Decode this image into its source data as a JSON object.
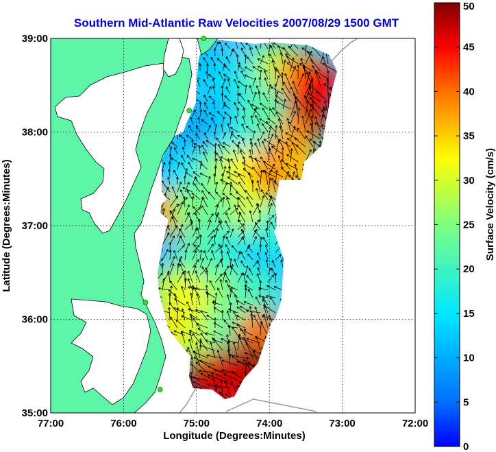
{
  "chart_data": {
    "type": "heatmap",
    "title": "Southern Mid-Atlantic Raw Velocities 2007/08/29 1500 GMT",
    "xlabel": "Longitude (Degrees:Minutes)",
    "ylabel": "Latitude (Degrees:Minutes)",
    "colorbar_label": "Surface Velocity (cm/s)",
    "xlim": [
      -77,
      -72
    ],
    "ylim": [
      35,
      39
    ],
    "x_ticks": [
      {
        "value": -77,
        "label": "77:00"
      },
      {
        "value": -76,
        "label": "76:00"
      },
      {
        "value": -75,
        "label": "75:00"
      },
      {
        "value": -74,
        "label": "74:00"
      },
      {
        "value": -73,
        "label": "73:00"
      },
      {
        "value": -72,
        "label": "72:00"
      }
    ],
    "y_ticks": [
      {
        "value": 35,
        "label": "35:00"
      },
      {
        "value": 36,
        "label": "36:00"
      },
      {
        "value": 37,
        "label": "37:00"
      },
      {
        "value": 38,
        "label": "38:00"
      },
      {
        "value": 39,
        "label": "39:00"
      }
    ],
    "colorbar_range": [
      0,
      50
    ],
    "colorbar_ticks": [
      {
        "value": 0,
        "label": "0"
      },
      {
        "value": 5,
        "label": "5"
      },
      {
        "value": 10,
        "label": "10"
      },
      {
        "value": 15,
        "label": "15"
      },
      {
        "value": 20,
        "label": "20"
      },
      {
        "value": 25,
        "label": "25"
      },
      {
        "value": 30,
        "label": "30"
      },
      {
        "value": 35,
        "label": "35"
      },
      {
        "value": 40,
        "label": "40"
      },
      {
        "value": 45,
        "label": "45"
      },
      {
        "value": 50,
        "label": "50"
      }
    ],
    "grid": true,
    "colors": {
      "land": "#5ef5a8",
      "water": "#ffffff",
      "title": "#0000cc",
      "arrows": "#000000",
      "stations": "#33dd33"
    },
    "stations": [
      {
        "lon": -74.9,
        "lat": 39.0
      },
      {
        "lon": -75.1,
        "lat": 38.23
      },
      {
        "lon": -75.7,
        "lat": 36.18
      },
      {
        "lon": -75.5,
        "lat": 35.25
      }
    ],
    "velocity_regions": [
      {
        "lon": -74.9,
        "lat": 38.7,
        "speed": 12
      },
      {
        "lon": -74.6,
        "lat": 38.5,
        "speed": 14
      },
      {
        "lon": -74.2,
        "lat": 38.6,
        "speed": 18
      },
      {
        "lon": -73.9,
        "lat": 38.7,
        "speed": 28
      },
      {
        "lon": -73.6,
        "lat": 38.6,
        "speed": 38
      },
      {
        "lon": -73.35,
        "lat": 38.5,
        "speed": 45
      },
      {
        "lon": -73.5,
        "lat": 38.15,
        "speed": 47
      },
      {
        "lon": -73.75,
        "lat": 37.95,
        "speed": 38
      },
      {
        "lon": -75.0,
        "lat": 38.05,
        "speed": 10
      },
      {
        "lon": -74.7,
        "lat": 38.1,
        "speed": 11
      },
      {
        "lon": -74.35,
        "lat": 38.0,
        "speed": 16
      },
      {
        "lon": -74.1,
        "lat": 38.2,
        "speed": 22
      },
      {
        "lon": -75.3,
        "lat": 37.6,
        "speed": 12
      },
      {
        "lon": -75.0,
        "lat": 37.55,
        "speed": 16
      },
      {
        "lon": -74.65,
        "lat": 37.6,
        "speed": 26
      },
      {
        "lon": -74.3,
        "lat": 37.6,
        "speed": 33
      },
      {
        "lon": -73.9,
        "lat": 37.55,
        "speed": 40
      },
      {
        "lon": -73.6,
        "lat": 37.6,
        "speed": 36
      },
      {
        "lon": -75.4,
        "lat": 37.15,
        "speed": 38
      },
      {
        "lon": -75.05,
        "lat": 37.2,
        "speed": 25
      },
      {
        "lon": -74.6,
        "lat": 37.15,
        "speed": 23
      },
      {
        "lon": -74.2,
        "lat": 37.15,
        "speed": 30
      },
      {
        "lon": -74.95,
        "lat": 36.7,
        "speed": 22
      },
      {
        "lon": -74.5,
        "lat": 36.75,
        "speed": 18
      },
      {
        "lon": -74.1,
        "lat": 36.6,
        "speed": 13
      },
      {
        "lon": -73.9,
        "lat": 36.95,
        "speed": 18
      },
      {
        "lon": -75.3,
        "lat": 36.3,
        "speed": 30
      },
      {
        "lon": -74.95,
        "lat": 36.2,
        "speed": 32
      },
      {
        "lon": -74.6,
        "lat": 36.3,
        "speed": 26
      },
      {
        "lon": -74.2,
        "lat": 36.3,
        "speed": 20
      },
      {
        "lon": -75.35,
        "lat": 35.85,
        "speed": 34
      },
      {
        "lon": -75.0,
        "lat": 35.85,
        "speed": 30
      },
      {
        "lon": -74.55,
        "lat": 35.9,
        "speed": 22
      },
      {
        "lon": -74.15,
        "lat": 35.85,
        "speed": 40
      },
      {
        "lon": -74.6,
        "lat": 35.45,
        "speed": 48
      },
      {
        "lon": -74.3,
        "lat": 35.5,
        "speed": 49
      },
      {
        "lon": -74.85,
        "lat": 35.35,
        "speed": 47
      },
      {
        "lon": -74.5,
        "lat": 35.25,
        "speed": 46
      }
    ]
  }
}
